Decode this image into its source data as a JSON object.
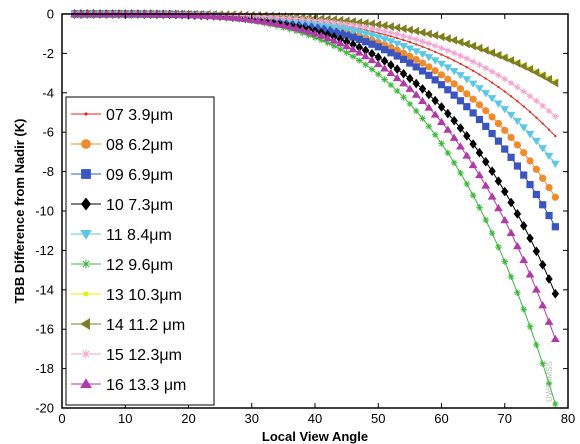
{
  "chart_data": {
    "type": "line",
    "title": "",
    "xlabel": "Local View Angle",
    "ylabel": "TBB Difference from Nadir (K)",
    "xlim": [
      0,
      80
    ],
    "ylim": [
      -20,
      0
    ],
    "x_ticks": [
      "0",
      "10",
      "20",
      "30",
      "40",
      "50",
      "60",
      "70",
      "80"
    ],
    "y_ticks": [
      "0",
      "-2",
      "-4",
      "-6",
      "-8",
      "-10",
      "-12",
      "-14",
      "-16",
      "-18",
      "-20"
    ],
    "grid": false,
    "legend_position": "left",
    "watermark": "UW/CIMSS",
    "x_start": 2,
    "x_end": 78,
    "x_step": 1,
    "curve_shape_exponent": 4.2,
    "series": [
      {
        "legend_label": "07  3.9μm",
        "color": "#e3251b",
        "marker": "dot",
        "y_at_78": -6.2
      },
      {
        "legend_label": "08  6.2μm",
        "color": "#f08a2b",
        "marker": "circle",
        "y_at_78": -9.3
      },
      {
        "legend_label": "09  6.9μm",
        "color": "#3a55c0",
        "marker": "square",
        "y_at_78": -10.8
      },
      {
        "legend_label": "10  7.3μm",
        "color": "#000000",
        "marker": "diamond",
        "y_at_78": -14.2
      },
      {
        "legend_label": "11  8.4μm",
        "color": "#5cc8e6",
        "marker": "triangle-down",
        "y_at_78": -7.6
      },
      {
        "legend_label": "12  9.6μm",
        "color": "#3cb83c",
        "marker": "star",
        "y_at_78": -19.8
      },
      {
        "legend_label": "13 10.3μm",
        "color": "#eeee00",
        "marker": "dot-large",
        "y_at_78": -3.4
      },
      {
        "legend_label": "14 11.2 μm",
        "color": "#7d7d25",
        "marker": "triangle-left",
        "y_at_78": -3.5
      },
      {
        "legend_label": "15 12.3μm",
        "color": "#f4a6d0",
        "marker": "star",
        "y_at_78": -5.2
      },
      {
        "legend_label": "16 13.3 μm",
        "color": "#b03aa8",
        "marker": "triangle-up",
        "y_at_78": -16.5
      }
    ]
  }
}
